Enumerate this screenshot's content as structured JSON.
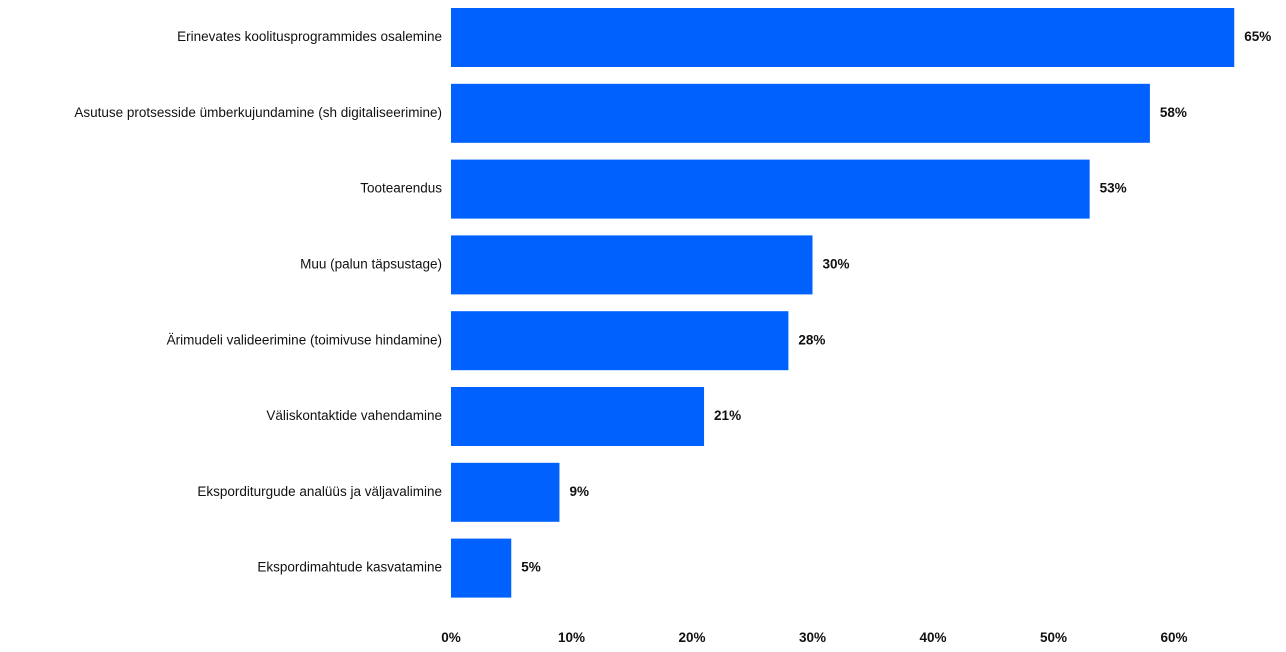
{
  "chart_data": {
    "type": "bar",
    "orientation": "horizontal",
    "categories": [
      "Erinevates koolitusprogrammides osalemine",
      "Asutuse protsesside ümberkujundamine (sh digitaliseerimine)",
      "Tootearendus",
      "Muu (palun täpsustage)",
      "Ärimudeli valideerimine (toimivuse hindamine)",
      "Väliskontaktide vahendamine",
      "Eksporditurgude analüüs ja väljavalimine",
      "Ekspordimahtude kasvatamine"
    ],
    "values": [
      65,
      58,
      53,
      30,
      28,
      21,
      9,
      5
    ],
    "value_labels": [
      "65%",
      "58%",
      "53%",
      "30%",
      "28%",
      "21%",
      "9%",
      "5%"
    ],
    "x_ticks": [
      0,
      10,
      20,
      30,
      40,
      50,
      60
    ],
    "x_tick_labels": [
      "0%",
      "10%",
      "20%",
      "30%",
      "40%",
      "50%",
      "60%"
    ],
    "xlim": [
      0,
      65
    ],
    "grid": false,
    "legend": "none",
    "bar_color": "#0061fe"
  }
}
